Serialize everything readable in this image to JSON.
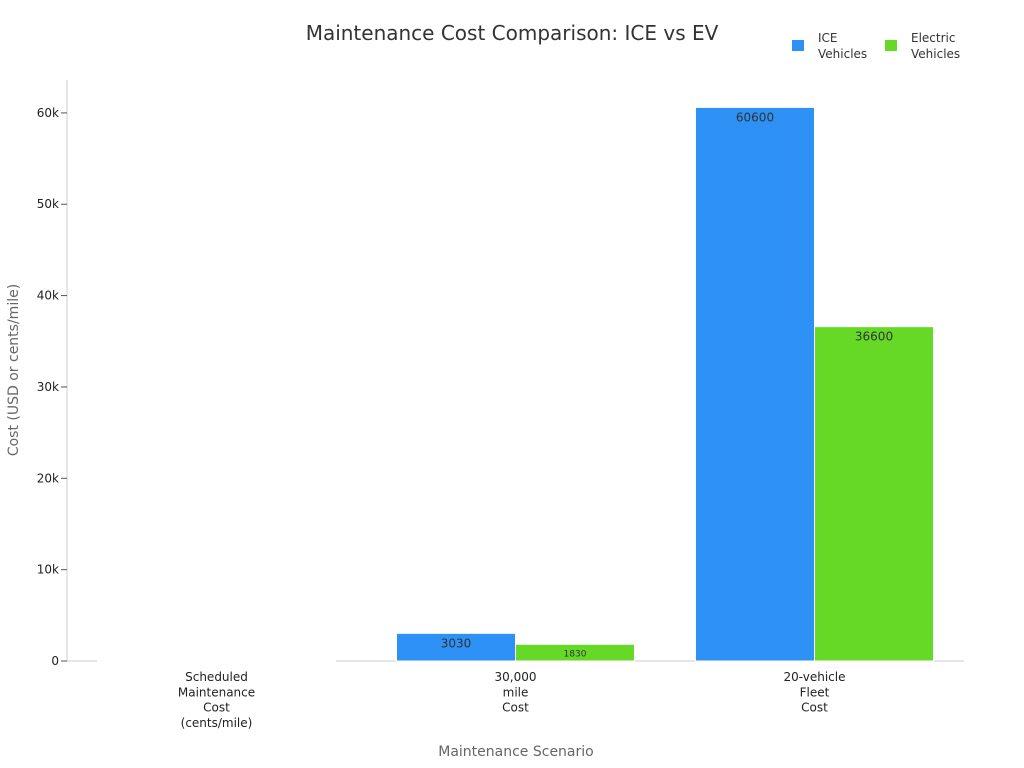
{
  "chart_data": {
    "type": "bar",
    "title": "Maintenance Cost Comparison: ICE vs EV",
    "xlabel": "Maintenance Scenario",
    "ylabel": "Cost (USD or cents/mile)",
    "categories": [
      [
        "Scheduled",
        "Maintenance",
        "Cost",
        "(cents/mile)"
      ],
      [
        "30,000",
        "mile",
        "Cost"
      ],
      [
        "20-vehicle",
        "Fleet",
        "Cost"
      ]
    ],
    "series": [
      {
        "name": [
          "ICE",
          "Vehicles"
        ],
        "color": "#2e91f5",
        "values": [
          10.1,
          3030,
          60600
        ],
        "labels": [
          "",
          "3030",
          "60600"
        ]
      },
      {
        "name": [
          "Electric",
          "Vehicles"
        ],
        "color": "#66d926",
        "values": [
          6.1,
          1830,
          36600
        ],
        "labels": [
          "",
          "1830",
          "36600"
        ]
      }
    ],
    "ylim": [
      0,
      63600
    ],
    "yticks": [
      0,
      10000,
      20000,
      30000,
      40000,
      50000,
      60000
    ],
    "ytick_labels": [
      "0",
      "10k",
      "20k",
      "30k",
      "40k",
      "50k",
      "60k"
    ],
    "legend_position": "top-right",
    "grid": false
  }
}
